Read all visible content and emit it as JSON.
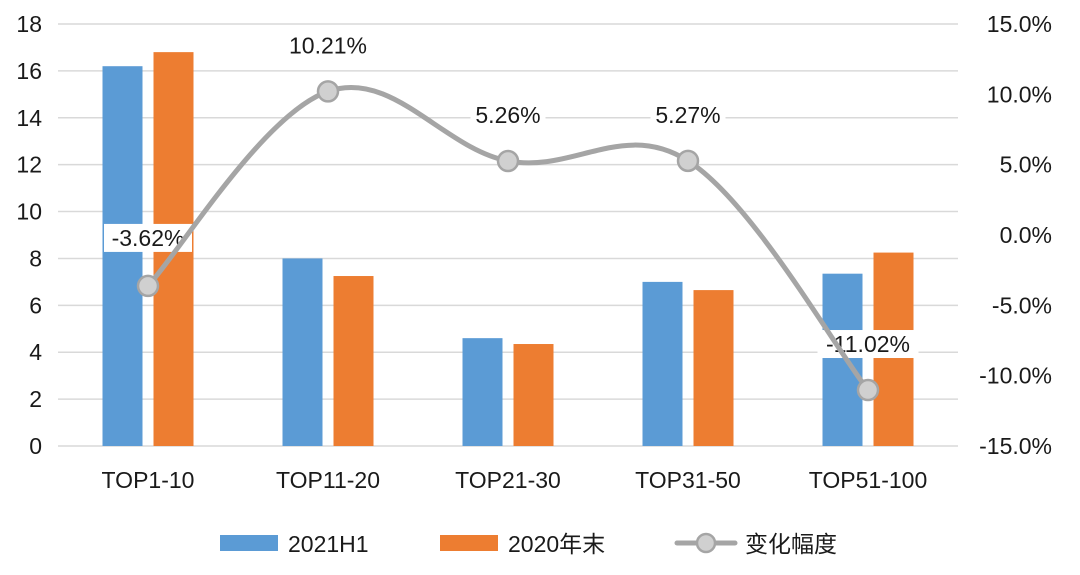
{
  "colors": {
    "series_2021h1": "#5b9bd5",
    "series_2020": "#ed7d31",
    "series_change": "#a5a5a5",
    "grid": "#d9d9d9",
    "text": "#1a1a1a"
  },
  "chart_data": {
    "type": "bar",
    "combo": "bar+line",
    "categories": [
      "TOP1-10",
      "TOP11-20",
      "TOP21-30",
      "TOP31-50",
      "TOP51-100"
    ],
    "series": [
      {
        "name": "2021H1",
        "type": "bar",
        "axis": "left",
        "values": [
          16.2,
          8.0,
          4.6,
          7.0,
          7.35
        ]
      },
      {
        "name": "2020年末",
        "type": "bar",
        "axis": "left",
        "values": [
          16.8,
          7.25,
          4.35,
          6.65,
          8.25
        ]
      },
      {
        "name": "变化幅度",
        "type": "line",
        "axis": "right",
        "values": [
          -3.62,
          10.21,
          5.26,
          5.27,
          -11.02
        ],
        "labels": [
          "-3.62%",
          "10.21%",
          "5.26%",
          "5.27%",
          "-11.02%"
        ]
      }
    ],
    "y_left": {
      "min": 0,
      "max": 18,
      "step": 2,
      "ticks": [
        "0",
        "2",
        "4",
        "6",
        "8",
        "10",
        "12",
        "14",
        "16",
        "18"
      ]
    },
    "y_right": {
      "min": -15,
      "max": 15,
      "step": 5,
      "ticks": [
        "-15.0%",
        "-10.0%",
        "-5.0%",
        "0.0%",
        "5.0%",
        "10.0%",
        "15.0%"
      ]
    },
    "grid": true,
    "legend_position": "bottom"
  }
}
